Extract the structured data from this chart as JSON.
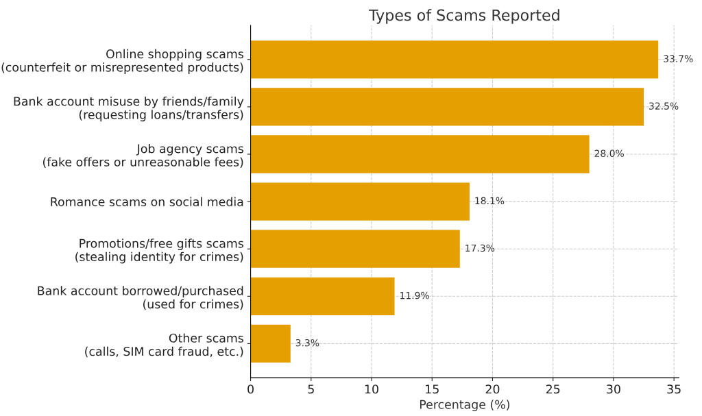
{
  "chart_data": {
    "type": "bar",
    "orientation": "horizontal",
    "title": "Types of Scams Reported",
    "xlabel": "Percentage (%)",
    "categories": [
      "Online shopping scams\n(counterfeit or misrepresented products)",
      "Bank account misuse by friends/family\n(requesting loans/transfers)",
      "Job agency scams\n(fake offers or unreasonable fees)",
      "Romance scams on social media",
      "Promotions/free gifts scams\n(stealing identity for crimes)",
      "Bank account borrowed/purchased\n(used for crimes)",
      "Other scams\n(calls, SIM card fraud, etc.)"
    ],
    "values": [
      33.7,
      32.5,
      28.0,
      18.1,
      17.3,
      11.9,
      3.3
    ],
    "value_labels": [
      "33.7%",
      "32.5%",
      "28.0%",
      "18.1%",
      "17.3%",
      "11.9%",
      "3.3%"
    ],
    "color": "#e69f00",
    "xlim": [
      0,
      35.4
    ],
    "xticks": [
      0,
      5,
      10,
      15,
      20,
      25,
      30,
      35
    ],
    "grid": true
  }
}
